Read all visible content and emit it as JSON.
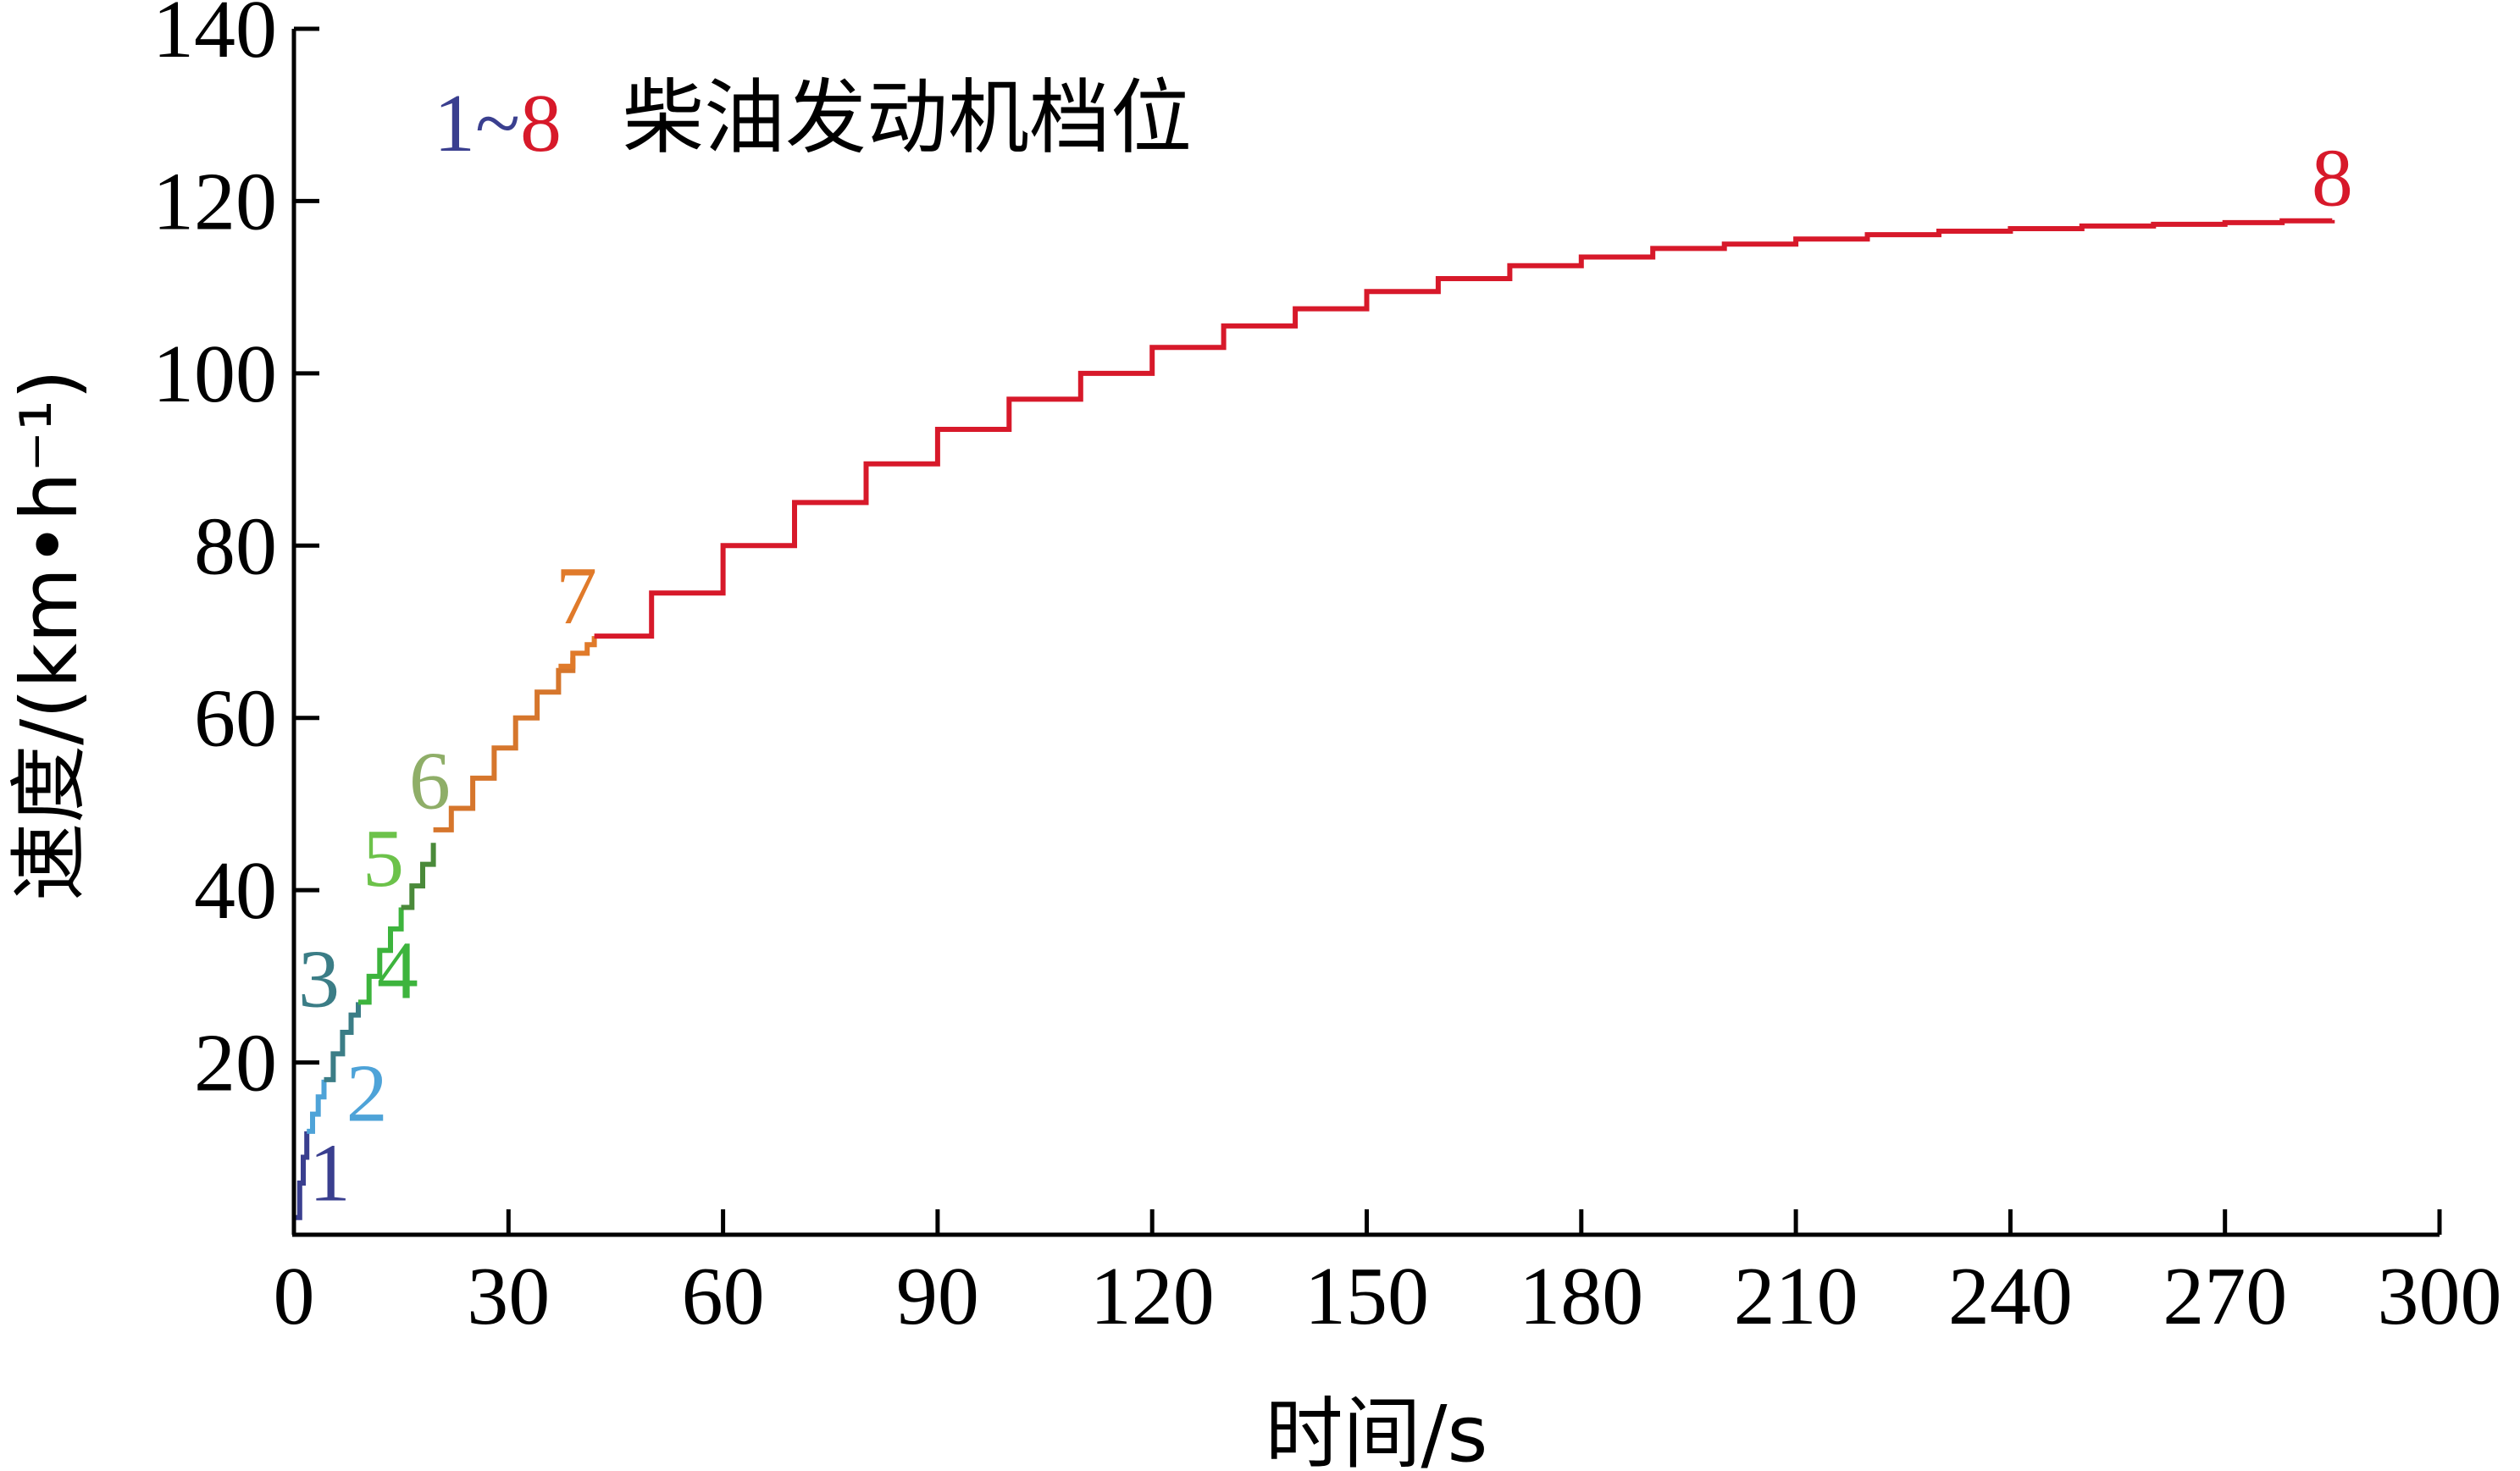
{
  "chart_data": {
    "type": "line",
    "xlabel": "时间/s",
    "ylabel": "速度/(km•h⁻¹)",
    "xlim": [
      0,
      300
    ],
    "ylim": [
      0,
      140
    ],
    "x_ticks": [
      0,
      30,
      60,
      90,
      120,
      150,
      180,
      210,
      240,
      270,
      300
    ],
    "y_ticks": [
      20,
      40,
      60,
      80,
      100,
      120,
      140
    ],
    "grid": false,
    "legend": {
      "start": "1",
      "tilde": "~",
      "end": "8",
      "text": "柴油发动机档位",
      "position": "top-left"
    },
    "series": [
      {
        "name": "1",
        "color": "#3a3f8f",
        "x": [
          0.3,
          0.8,
          1.3,
          1.8
        ],
        "y": [
          2,
          6,
          9,
          12
        ]
      },
      {
        "name": "2",
        "color": "#4ea3d8",
        "x": [
          1.8,
          2.6,
          3.4,
          4.2
        ],
        "y": [
          12,
          14,
          16,
          18
        ]
      },
      {
        "name": "3",
        "color": "#3b7d86",
        "x": [
          4.2,
          5.5,
          6.8,
          8.0,
          9.0
        ],
        "y": [
          18,
          21,
          23.5,
          25.5,
          27
        ]
      },
      {
        "name": "4",
        "color": "#3db43d",
        "x": [
          9.0,
          10.5,
          12.0,
          13.5,
          15.0
        ],
        "y": [
          27,
          30,
          33,
          35.5,
          38
        ]
      },
      {
        "name": "5",
        "color": "#4a8a3a",
        "x": [
          15.0,
          16.5,
          18.0,
          19.5
        ],
        "y": [
          38,
          40.5,
          43,
          45.5
        ]
      },
      {
        "name": "6",
        "color": "#d6762c",
        "x": [
          19.5,
          22,
          25,
          28,
          31,
          34,
          37,
          39
        ],
        "y": [
          47,
          49.5,
          53,
          56.5,
          60,
          63,
          65.5,
          67
        ]
      },
      {
        "name": "7",
        "color": "#e07a2a",
        "x": [
          37,
          39,
          41,
          42
        ],
        "y": [
          66,
          67.5,
          68.5,
          69.5
        ]
      },
      {
        "name": "8",
        "color": "#d7192a",
        "x": [
          42,
          50,
          60,
          70,
          80,
          90,
          100,
          110,
          120,
          130,
          140,
          150,
          160,
          170,
          180,
          190,
          200,
          210,
          220,
          230,
          240,
          250,
          260,
          270,
          278,
          285
        ],
        "y": [
          69.5,
          74.5,
          80,
          85,
          89.5,
          93.5,
          97,
          100,
          103,
          105.5,
          107.5,
          109.5,
          111,
          112.5,
          113.5,
          114.5,
          115,
          115.6,
          116.1,
          116.5,
          116.8,
          117.1,
          117.3,
          117.5,
          117.7,
          117.8
        ]
      }
    ],
    "annotations": [
      {
        "text": "1",
        "x": 5.0,
        "y": 4,
        "color": "#3a3f8f"
      },
      {
        "text": "2",
        "x": 10.2,
        "y": 13.2,
        "color": "#4ea3d8"
      },
      {
        "text": "3",
        "x": 3.5,
        "y": 26.5,
        "color": "#3b7d86"
      },
      {
        "text": "4",
        "x": 14.5,
        "y": 27.5,
        "color": "#3db43d"
      },
      {
        "text": "5",
        "x": 12.5,
        "y": 40.5,
        "color": "#6cc24a"
      },
      {
        "text": "6",
        "x": 19.0,
        "y": 49.5,
        "color": "#8fae68"
      },
      {
        "text": "7",
        "x": 39.5,
        "y": 71,
        "color": "#e07a2a"
      },
      {
        "text": "8",
        "x": 285,
        "y": 119.5,
        "color": "#d7192a"
      }
    ]
  }
}
